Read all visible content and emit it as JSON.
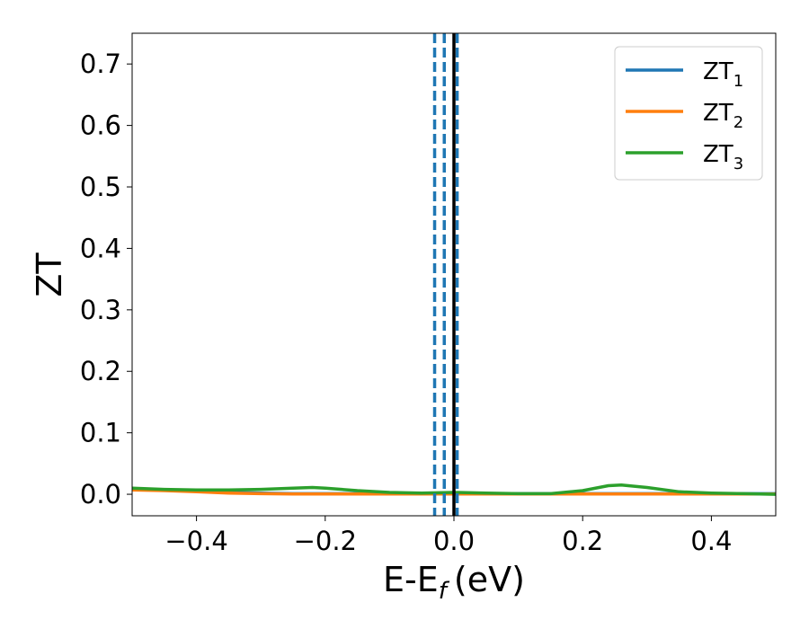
{
  "chart_data": {
    "type": "line",
    "xlabel": "E-E",
    "xlabel_subscript": "f",
    "xlabel_unit": "(eV)",
    "ylabel": "ZT",
    "xlim": [
      -0.5,
      0.5
    ],
    "ylim": [
      -0.035,
      0.75
    ],
    "x_ticks": [
      -0.4,
      -0.2,
      0.0,
      0.2,
      0.4
    ],
    "x_tick_labels": [
      "−0.4",
      "−0.2",
      "0.0",
      "0.2",
      "0.4"
    ],
    "y_ticks": [
      0.0,
      0.1,
      0.2,
      0.3,
      0.4,
      0.5,
      0.6,
      0.7
    ],
    "y_tick_labels": [
      "0.0",
      "0.1",
      "0.2",
      "0.3",
      "0.4",
      "0.5",
      "0.6",
      "0.7"
    ],
    "grid": false,
    "legend_position": "top-right",
    "x": [
      -0.5,
      -0.45,
      -0.4,
      -0.35,
      -0.3,
      -0.25,
      -0.22,
      -0.2,
      -0.15,
      -0.1,
      -0.05,
      0.0,
      0.05,
      0.1,
      0.15,
      0.2,
      0.24,
      0.26,
      0.3,
      0.35,
      0.4,
      0.45,
      0.5
    ],
    "series": [
      {
        "name": "ZT",
        "subscript": "1",
        "color": "#1f77b4",
        "values": [
          0.008,
          0.007,
          0.005,
          0.003,
          0.002,
          0.001,
          0.001,
          0.001,
          0.001,
          0.001,
          0.001,
          0.001,
          0.001,
          0.001,
          0.001,
          0.001,
          0.001,
          0.001,
          0.001,
          0.001,
          0.001,
          0.001,
          0.001
        ]
      },
      {
        "name": "ZT",
        "subscript": "2",
        "color": "#ff7f0e",
        "values": [
          0.007,
          0.006,
          0.004,
          0.002,
          0.001,
          0.0005,
          0.0005,
          0.0005,
          0.0005,
          0.0005,
          0.0005,
          0.0005,
          0.0005,
          0.0005,
          0.0005,
          0.0005,
          0.0005,
          0.0005,
          0.0005,
          0.0005,
          0.0005,
          0.0005,
          0.0005
        ]
      },
      {
        "name": "ZT",
        "subscript": "3",
        "color": "#2ca02c",
        "values": [
          0.01,
          0.008,
          0.007,
          0.007,
          0.008,
          0.01,
          0.011,
          0.01,
          0.006,
          0.003,
          0.002,
          0.003,
          0.002,
          0.001,
          0.001,
          0.006,
          0.014,
          0.015,
          0.011,
          0.004,
          0.002,
          0.001,
          0.0
        ]
      }
    ],
    "vertical_lines": [
      {
        "x": -0.03,
        "style": "dashed",
        "color": "#1f77b4"
      },
      {
        "x": -0.015,
        "style": "dashed",
        "color": "#1f77b4"
      },
      {
        "x": 0.005,
        "style": "dashed",
        "color": "#1f77b4"
      },
      {
        "x": 0.0,
        "style": "solid",
        "color": "#000000"
      }
    ]
  }
}
